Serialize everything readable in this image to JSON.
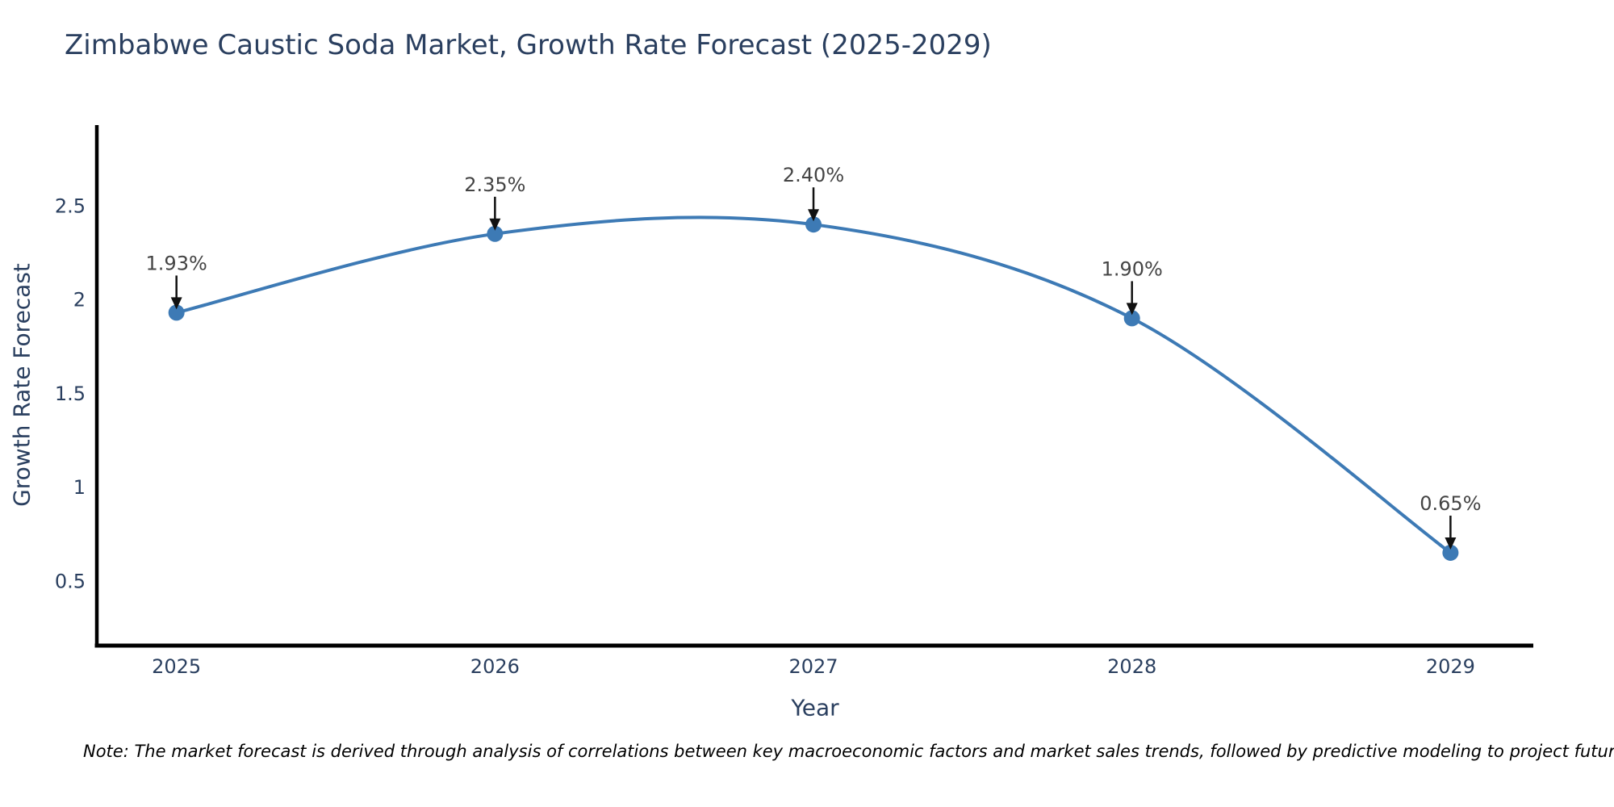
{
  "title": "Zimbabwe Caustic Soda Market, Growth Rate Forecast (2025-2029)",
  "note": "Note: The market forecast is derived through analysis of correlations between key macroeconomic factors and market sales trends, followed by predictive modeling to project future sales",
  "chart_data": {
    "type": "line",
    "line_shape": "spline",
    "title": "Zimbabwe Caustic Soda Market, Growth Rate Forecast (2025-2029)",
    "xlabel": "Year",
    "ylabel": "Growth Rate Forecast",
    "x": [
      2025,
      2026,
      2027,
      2028,
      2029
    ],
    "y": [
      1.93,
      2.35,
      2.4,
      1.9,
      0.65
    ],
    "point_labels": [
      "1.93%",
      "2.35%",
      "2.40%",
      "1.90%",
      "0.65%"
    ],
    "x_axis": {
      "tick_values": [
        2025,
        2026,
        2027,
        2028,
        2029
      ],
      "tick_labels": [
        "2025",
        "2026",
        "2027",
        "2028",
        "2029"
      ],
      "range": [
        2024.75,
        2029.26
      ]
    },
    "y_axis": {
      "tick_values": [
        2.5,
        2.0,
        1.5,
        1.0,
        0.5
      ],
      "tick_labels": [
        "2.5",
        "2",
        "1.5",
        "1",
        "0.5"
      ],
      "range": [
        0.155,
        2.93
      ]
    },
    "grid": false,
    "legend": "none",
    "colors": {
      "line": "#3d7ab5",
      "marker": "#3d7ab5",
      "annotation_text": "#444444",
      "annotation_arrow": "#111111",
      "axis_line": "#000000",
      "title_text": "#2a3f5f",
      "tick_text": "#2a3f5f"
    }
  }
}
